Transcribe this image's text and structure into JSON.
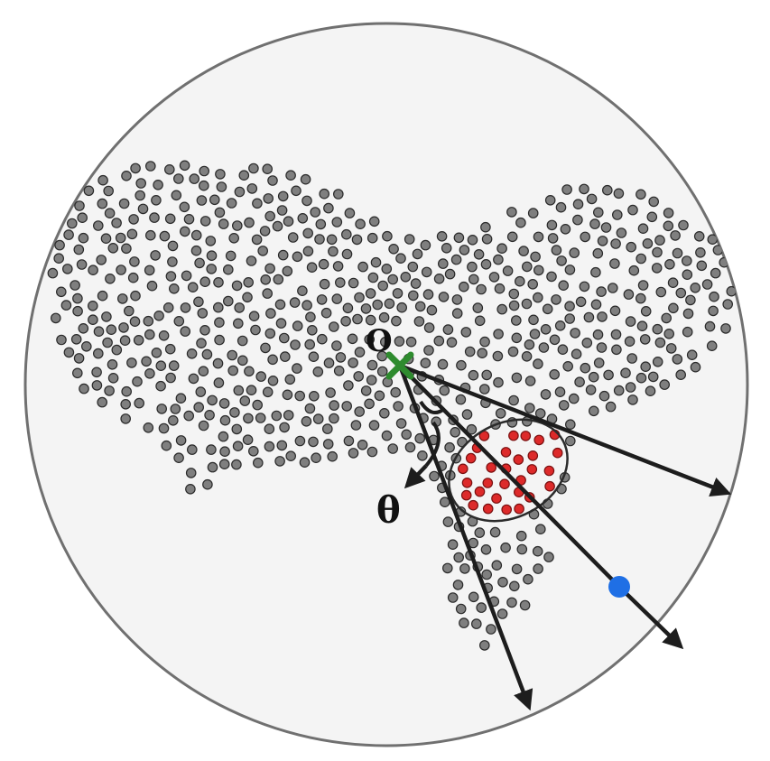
{
  "labels": {
    "origin": "O",
    "angle": "θ"
  },
  "colors": {
    "background_disk": "#f4f4f4",
    "disk_border": "#707070",
    "point_fill": "#7f7f7f",
    "point_stroke": "#2a2a2a",
    "selected_point_fill": "#dd2a2a",
    "origin_marker": "#2e8b2e",
    "query_point": "#1f6fe5",
    "ray": "#1d1d1d"
  },
  "diagram": {
    "rays": [
      "ray-right",
      "ray-middle-through-query-point",
      "ray-lower"
    ],
    "highlighted_region": "ellipse-of-red-points",
    "point_cloud_shape": "bird-like"
  }
}
